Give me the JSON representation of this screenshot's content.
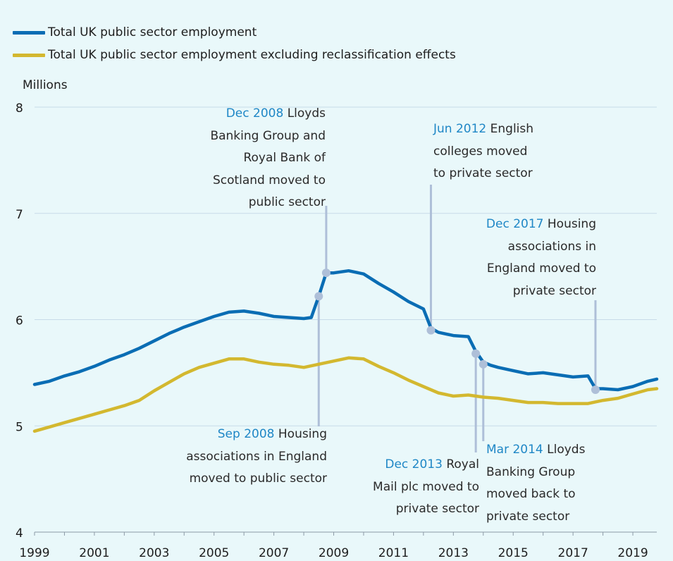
{
  "chart_data": {
    "type": "line",
    "ylabel": "Millions",
    "ylim": [
      4,
      8
    ],
    "xlim": [
      1999.0,
      2019.8
    ],
    "yticks": [
      "4",
      "5",
      "6",
      "7",
      "8"
    ],
    "xticks": [
      "1999",
      "2001",
      "2003",
      "2005",
      "2007",
      "2009",
      "2011",
      "2013",
      "2015",
      "2017",
      "2019"
    ],
    "grid": true,
    "legend_position": "top-left",
    "series": [
      {
        "name": "Total UK public sector employment",
        "color": "#0a6db4",
        "points": [
          [
            1999.0,
            5.39
          ],
          [
            1999.5,
            5.42
          ],
          [
            2000.0,
            5.47
          ],
          [
            2000.5,
            5.51
          ],
          [
            2001.0,
            5.56
          ],
          [
            2001.5,
            5.62
          ],
          [
            2002.0,
            5.67
          ],
          [
            2002.5,
            5.73
          ],
          [
            2003.0,
            5.8
          ],
          [
            2003.5,
            5.87
          ],
          [
            2004.0,
            5.93
          ],
          [
            2004.5,
            5.98
          ],
          [
            2005.0,
            6.03
          ],
          [
            2005.5,
            6.07
          ],
          [
            2006.0,
            6.08
          ],
          [
            2006.5,
            6.06
          ],
          [
            2007.0,
            6.03
          ],
          [
            2007.5,
            6.02
          ],
          [
            2008.0,
            6.01
          ],
          [
            2008.25,
            6.02
          ],
          [
            2008.5,
            6.22
          ],
          [
            2008.75,
            6.44
          ],
          [
            2009.0,
            6.44
          ],
          [
            2009.5,
            6.46
          ],
          [
            2010.0,
            6.43
          ],
          [
            2010.5,
            6.34
          ],
          [
            2011.0,
            6.26
          ],
          [
            2011.5,
            6.17
          ],
          [
            2012.0,
            6.1
          ],
          [
            2012.25,
            5.92
          ],
          [
            2012.5,
            5.88
          ],
          [
            2013.0,
            5.85
          ],
          [
            2013.5,
            5.84
          ],
          [
            2013.75,
            5.7
          ],
          [
            2014.0,
            5.6
          ],
          [
            2014.25,
            5.57
          ],
          [
            2014.5,
            5.55
          ],
          [
            2015.0,
            5.52
          ],
          [
            2015.5,
            5.49
          ],
          [
            2016.0,
            5.5
          ],
          [
            2016.5,
            5.48
          ],
          [
            2017.0,
            5.46
          ],
          [
            2017.5,
            5.47
          ],
          [
            2017.75,
            5.35
          ],
          [
            2018.0,
            5.35
          ],
          [
            2018.5,
            5.34
          ],
          [
            2019.0,
            5.37
          ],
          [
            2019.5,
            5.42
          ],
          [
            2019.8,
            5.44
          ]
        ]
      },
      {
        "name": "Total UK public sector employment excluding reclassification effects",
        "color": "#d3b82f",
        "points": [
          [
            1999.0,
            4.95
          ],
          [
            1999.5,
            4.99
          ],
          [
            2000.0,
            5.03
          ],
          [
            2000.5,
            5.07
          ],
          [
            2001.0,
            5.11
          ],
          [
            2001.5,
            5.15
          ],
          [
            2002.0,
            5.19
          ],
          [
            2002.5,
            5.24
          ],
          [
            2003.0,
            5.33
          ],
          [
            2003.5,
            5.41
          ],
          [
            2004.0,
            5.49
          ],
          [
            2004.5,
            5.55
          ],
          [
            2005.0,
            5.59
          ],
          [
            2005.5,
            5.63
          ],
          [
            2006.0,
            5.63
          ],
          [
            2006.5,
            5.6
          ],
          [
            2007.0,
            5.58
          ],
          [
            2007.5,
            5.57
          ],
          [
            2008.0,
            5.55
          ],
          [
            2008.5,
            5.58
          ],
          [
            2009.0,
            5.61
          ],
          [
            2009.5,
            5.64
          ],
          [
            2010.0,
            5.63
          ],
          [
            2010.5,
            5.56
          ],
          [
            2011.0,
            5.5
          ],
          [
            2011.5,
            5.43
          ],
          [
            2012.0,
            5.37
          ],
          [
            2012.5,
            5.31
          ],
          [
            2013.0,
            5.28
          ],
          [
            2013.5,
            5.29
          ],
          [
            2014.0,
            5.27
          ],
          [
            2014.5,
            5.26
          ],
          [
            2015.0,
            5.24
          ],
          [
            2015.5,
            5.22
          ],
          [
            2016.0,
            5.22
          ],
          [
            2016.5,
            5.21
          ],
          [
            2017.0,
            5.21
          ],
          [
            2017.5,
            5.21
          ],
          [
            2018.0,
            5.24
          ],
          [
            2018.5,
            5.26
          ],
          [
            2019.0,
            5.3
          ],
          [
            2019.5,
            5.34
          ],
          [
            2019.8,
            5.35
          ]
        ]
      }
    ],
    "annotations": [
      {
        "date": "Dec 2008",
        "text": [
          "Lloyds",
          "Banking Group  and",
          "Royal Bank of",
          "Scotland moved to",
          "public sector"
        ],
        "x": 2008.75,
        "y": 6.44
      },
      {
        "date": "Sep 2008",
        "text": [
          "Housing",
          "associations in England",
          "moved to public sector"
        ],
        "x": 2008.5,
        "y": 6.22
      },
      {
        "date": "Jun 2012",
        "text": [
          "English",
          "colleges moved",
          "to private sector"
        ],
        "x": 2012.25,
        "y": 5.9
      },
      {
        "date": "Dec 2013",
        "text": [
          "Royal",
          "Mail plc moved to",
          "private sector"
        ],
        "x": 2013.75,
        "y": 5.68
      },
      {
        "date": "Mar 2014",
        "text": [
          "Lloyds",
          "Banking Group",
          "moved back to",
          "private sector"
        ],
        "x": 2014.0,
        "y": 5.58
      },
      {
        "date": "Dec 2017",
        "text": [
          "Housing",
          "associations in",
          "England moved to",
          "private sector"
        ],
        "x": 2017.75,
        "y": 5.34
      }
    ]
  }
}
